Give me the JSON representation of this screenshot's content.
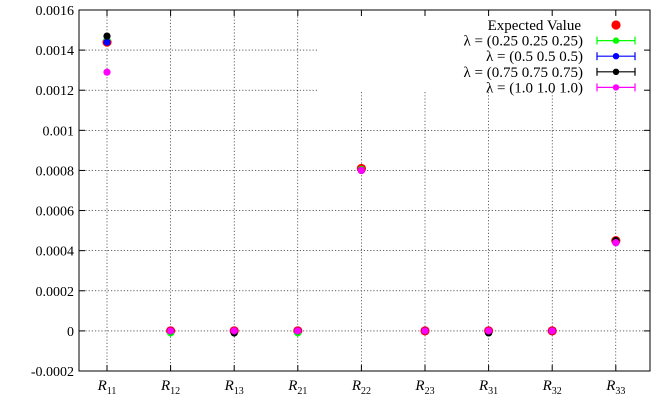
{
  "chart_data": {
    "type": "scatter",
    "categories": [
      "R11",
      "R12",
      "R13",
      "R21",
      "R22",
      "R23",
      "R31",
      "R32",
      "R33"
    ],
    "category_labels": [
      {
        "base": "R",
        "sub": "11"
      },
      {
        "base": "R",
        "sub": "12"
      },
      {
        "base": "R",
        "sub": "13"
      },
      {
        "base": "R",
        "sub": "21"
      },
      {
        "base": "R",
        "sub": "22"
      },
      {
        "base": "R",
        "sub": "23"
      },
      {
        "base": "R",
        "sub": "31"
      },
      {
        "base": "R",
        "sub": "32"
      },
      {
        "base": "R",
        "sub": "33"
      }
    ],
    "ylim": [
      -0.0002,
      0.0016
    ],
    "yticks": [
      "-0.0002",
      "0",
      "0.0002",
      "0.0004",
      "0.0006",
      "0.0008",
      "0.001",
      "0.0012",
      "0.0014",
      "0.0016"
    ],
    "grid": true,
    "legend_position": "top-right",
    "series": [
      {
        "name": "Expected Value",
        "color": "#ff0000",
        "values": [
          0.00144,
          0.0,
          0.0,
          0.0,
          0.00081,
          0.0,
          0.0,
          0.0,
          0.00045
        ],
        "error_bars": false
      },
      {
        "name": "λ = (0.25   0.25   0.25)",
        "color": "#00ff00",
        "values": [
          0.00145,
          -1e-05,
          -1e-05,
          -1e-05,
          0.000805,
          0.0,
          -1e-05,
          0.0,
          0.00045
        ],
        "error_bars": true
      },
      {
        "name": "λ = (0.5   0.5   0.5)",
        "color": "#0000ff",
        "values": [
          0.00144,
          0.0,
          0.0,
          0.0,
          0.0008,
          0.0,
          0.0,
          0.0,
          0.00044
        ],
        "error_bars": true
      },
      {
        "name": "λ = (0.75   0.75   0.75)",
        "color": "#000000",
        "values": [
          0.00147,
          0.0,
          -1e-05,
          0.0,
          0.0008,
          0.0,
          -1e-05,
          0.0,
          0.00045
        ],
        "error_bars": true
      },
      {
        "name": "λ = (1.0   1.0   1.0)",
        "color": "#ff00ff",
        "values": [
          0.00129,
          0.0,
          0.0,
          0.0,
          0.0008,
          0.0,
          0.0,
          0.0,
          0.00044
        ],
        "error_bars": true
      }
    ]
  }
}
